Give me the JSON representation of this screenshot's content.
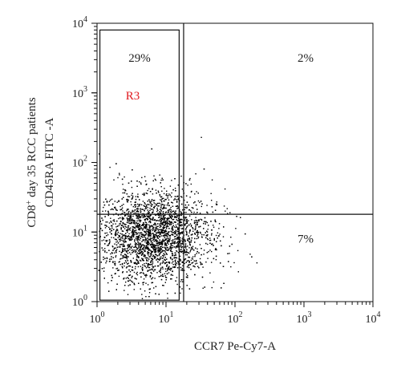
{
  "chart_data": {
    "type": "scatter",
    "xlabel": "CCR7 Pe-Cy7-A",
    "ylabel_line1": "CD8",
    "ylabel_sup": "+",
    "ylabel_line1_rest": " day 35 RCC patients",
    "ylabel_line2": "CD45RA FITC -A",
    "x_scale": "log",
    "y_scale": "log",
    "xlim": [
      1,
      10000
    ],
    "ylim": [
      1,
      10000
    ],
    "x_ticks": [
      {
        "base": "10",
        "exp": "0"
      },
      {
        "base": "10",
        "exp": "1"
      },
      {
        "base": "10",
        "exp": "2"
      },
      {
        "base": "10",
        "exp": "3"
      },
      {
        "base": "10",
        "exp": "4"
      }
    ],
    "y_ticks": [
      {
        "base": "10",
        "exp": "0"
      },
      {
        "base": "10",
        "exp": "1"
      },
      {
        "base": "10",
        "exp": "2"
      },
      {
        "base": "10",
        "exp": "3"
      },
      {
        "base": "10",
        "exp": "4"
      }
    ],
    "quadrant_gate": {
      "x": 18,
      "y": 18
    },
    "quadrant_labels": [
      {
        "name": "upper-right",
        "text": "2%"
      },
      {
        "name": "lower-right",
        "text": "7%"
      }
    ],
    "region": {
      "name": "R3",
      "x_range": [
        1.1,
        15.5
      ],
      "y_range": [
        1.05,
        8000
      ],
      "percent": "29%"
    },
    "population": {
      "center_x": 6,
      "center_y": 9,
      "spread_log_x": 0.38,
      "spread_log_y": 0.33,
      "n_points": 3500
    },
    "grid": false,
    "legend": "none"
  }
}
